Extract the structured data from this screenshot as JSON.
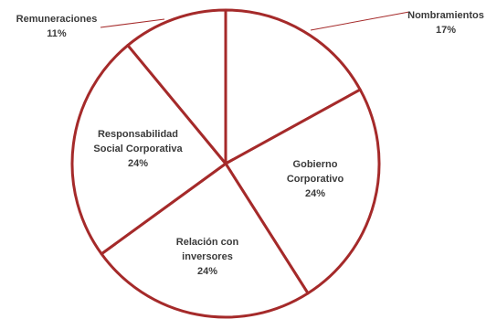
{
  "chart_data": {
    "type": "pie",
    "title": "",
    "start": "top",
    "direction": "clockwise",
    "border_color": "#a52a2a",
    "fill_color": "#ffffff",
    "leader_color": "#a52a2a",
    "slices": [
      {
        "label_lines": [
          "Nombramientos"
        ],
        "pct_label": "17%",
        "value": 17
      },
      {
        "label_lines": [
          "Gobierno",
          "Corporativo"
        ],
        "pct_label": "24%",
        "value": 24
      },
      {
        "label_lines": [
          "Relación con",
          "inversores"
        ],
        "pct_label": "24%",
        "value": 24
      },
      {
        "label_lines": [
          "Responsabilidad",
          "Social Corporativa"
        ],
        "pct_label": "24%",
        "value": 24
      },
      {
        "label_lines": [
          "Remuneraciones"
        ],
        "pct_label": "11%",
        "value": 11
      }
    ]
  }
}
